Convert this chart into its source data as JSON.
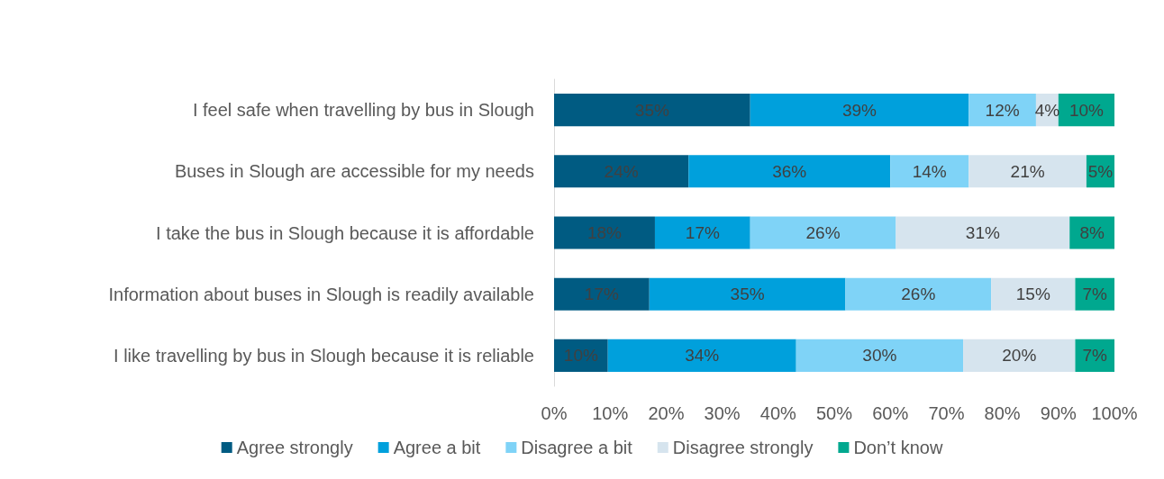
{
  "chart_data": {
    "type": "bar",
    "orientation": "horizontal",
    "stacked": true,
    "grid": false,
    "legend": "bottom",
    "categories": [
      "I feel safe when travelling by bus in Slough",
      "Buses in Slough are accessible for my needs",
      "I take the bus in Slough because it is affordable",
      "Information about buses in Slough is readily available",
      "I like travelling by bus in Slough because it is reliable"
    ],
    "series": [
      {
        "name": "Agree strongly",
        "color": "#005b82",
        "values": [
          35,
          24,
          18,
          17,
          9.6
        ],
        "value_labels": [
          "35%",
          "24%",
          "18%",
          "17%",
          "10%"
        ]
      },
      {
        "name": "Agree a bit",
        "color": "#00a0dc",
        "values": [
          39,
          36,
          17,
          35,
          33.6
        ],
        "value_labels": [
          "39%",
          "36%",
          "17%",
          "35%",
          "34%"
        ]
      },
      {
        "name": "Disagree a bit",
        "color": "#7fd3f7",
        "values": [
          12,
          14,
          26,
          26,
          29.8
        ],
        "value_labels": [
          "12%",
          "14%",
          "26%",
          "26%",
          "30%"
        ]
      },
      {
        "name": "Disagree strongly",
        "color": "#d6e4ee",
        "values": [
          4,
          21,
          31,
          15,
          20
        ],
        "value_labels": [
          "4%",
          "21%",
          "31%",
          "15%",
          "20%"
        ]
      },
      {
        "name": "Don’t know",
        "color": "#00a88f",
        "values": [
          10,
          5,
          8,
          7,
          7
        ],
        "value_labels": [
          "10%",
          "5%",
          "8%",
          "7%",
          "7%"
        ]
      }
    ],
    "xlim": [
      0,
      100
    ],
    "xticks": [
      {
        "value": 0,
        "label": "0%"
      },
      {
        "value": 10,
        "label": "10%"
      },
      {
        "value": 20,
        "label": "20%"
      },
      {
        "value": 30,
        "label": "30%"
      },
      {
        "value": 40,
        "label": "40%"
      },
      {
        "value": 50,
        "label": "50%"
      },
      {
        "value": 60,
        "label": "60%"
      },
      {
        "value": 70,
        "label": "70%"
      },
      {
        "value": 80,
        "label": "80%"
      },
      {
        "value": 90,
        "label": "90%"
      },
      {
        "value": 100,
        "label": "100%"
      }
    ]
  }
}
